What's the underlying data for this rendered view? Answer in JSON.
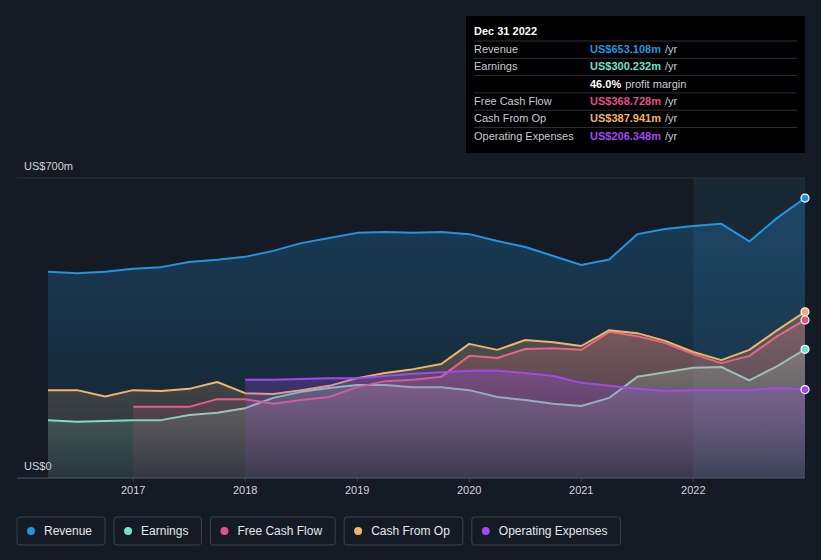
{
  "chart_data": {
    "type": "area",
    "x": [
      2016.24,
      2016.5,
      2016.75,
      2017,
      2017.25,
      2017.5,
      2017.75,
      2018,
      2018.25,
      2018.5,
      2018.75,
      2019,
      2019.25,
      2019.5,
      2019.75,
      2020,
      2020.25,
      2020.5,
      2020.75,
      2021,
      2021.25,
      2021.5,
      2021.75,
      2022,
      2022.25,
      2022.5,
      2022.75,
      2022.997
    ],
    "xlim": [
      2016.24,
      2022.997
    ],
    "xticks": [
      2017,
      2018,
      2019,
      2020,
      2021,
      2022
    ],
    "ylim": [
      0,
      700
    ],
    "yticks": [
      {
        "value": 0,
        "label": "US$0"
      },
      {
        "value": 700,
        "label": "US$700m"
      }
    ],
    "grid": true,
    "legend": "bottom",
    "series": [
      {
        "name": "Revenue",
        "color": "#2394df",
        "values": [
          481,
          478,
          481,
          488,
          492,
          504,
          509,
          516,
          530,
          548,
          560,
          572,
          574,
          572,
          574,
          569,
          553,
          539,
          518,
          497,
          510,
          569,
          581,
          588,
          593,
          552,
          607,
          653.108
        ]
      },
      {
        "name": "Earnings",
        "color": "#72e0cc",
        "values": [
          135,
          131,
          133,
          135,
          135,
          147,
          152,
          163,
          187,
          201,
          210,
          217,
          217,
          212,
          212,
          205,
          189,
          182,
          173,
          168,
          187,
          236,
          247,
          257,
          259,
          228,
          261,
          300.232
        ]
      },
      {
        "name": "Free Cash Flow",
        "color": "#e0508a",
        "values": [
          null,
          null,
          null,
          166,
          166,
          166,
          184,
          184,
          173,
          182,
          189,
          212,
          226,
          229,
          236,
          285,
          280,
          301,
          303,
          299,
          341,
          331,
          315,
          289,
          268,
          285,
          331,
          368.728
        ]
      },
      {
        "name": "Cash From Op",
        "color": "#f2b36b",
        "values": [
          205,
          205,
          190,
          205,
          203,
          208,
          224,
          198,
          196,
          205,
          215,
          233,
          245,
          254,
          266,
          313,
          299,
          322,
          317,
          308,
          345,
          338,
          320,
          294,
          275,
          299,
          345,
          387.941
        ]
      },
      {
        "name": "Operating Expenses",
        "color": "#a249ee",
        "values": [
          null,
          null,
          null,
          null,
          null,
          null,
          null,
          229,
          229,
          231,
          233,
          233,
          238,
          243,
          247,
          250,
          250,
          245,
          238,
          222,
          215,
          208,
          203,
          205,
          205,
          205,
          210,
          206.348
        ]
      }
    ],
    "tooltip": {
      "title": "Dec 31 2022",
      "rows": [
        {
          "label": "Revenue",
          "value": "US$653.108m",
          "unit": "/yr",
          "color": "#2394df"
        },
        {
          "label": "Earnings",
          "value": "US$300.232m",
          "unit": "/yr",
          "color": "#72e0cc"
        },
        {
          "value": "46.0%",
          "unit": "profit margin",
          "color": "#ffffff"
        },
        {
          "label": "Free Cash Flow",
          "value": "US$368.728m",
          "unit": "/yr",
          "color": "#e0508a"
        },
        {
          "label": "Cash From Op",
          "value": "US$387.941m",
          "unit": "/yr",
          "color": "#f2b36b"
        },
        {
          "label": "Operating Expenses",
          "value": "US$206.348m",
          "unit": "/yr",
          "color": "#a249ee"
        }
      ]
    }
  }
}
